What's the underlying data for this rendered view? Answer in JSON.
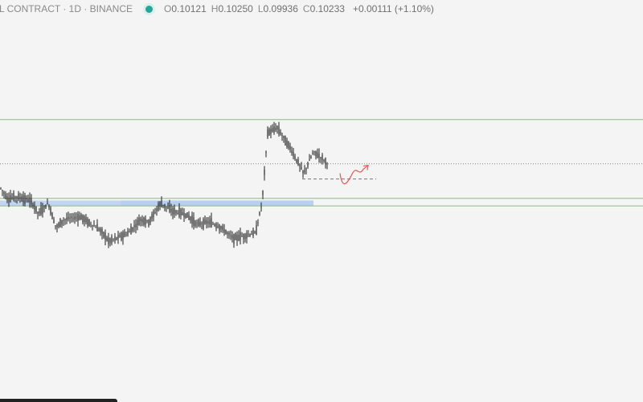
{
  "header": {
    "symbol": "L CONTRACT · 1D · BINANCE",
    "open_label": "O",
    "open": "0.10121",
    "high_label": "H",
    "high": "0.10250",
    "low_label": "L",
    "low": "0.09936",
    "close_label": "C",
    "close": "0.10233",
    "change": "+0.00111 (+1.10%)"
  },
  "colors": {
    "background": "#f4f4f4",
    "candle": "#1f1f1f",
    "level_line": "#8fb98a",
    "zone": "#b7cff0",
    "dotted_line": "#888888",
    "projection": "#e05a4f",
    "status_dot": "#26a69a"
  },
  "chart_data": {
    "type": "candlestick",
    "title": "",
    "candle_count": 200,
    "visible_price_range_approx": [
      0.0835,
      0.1185
    ],
    "horizontal_levels": [
      {
        "kind": "resistance",
        "style": "solid",
        "value": 0.1105
      },
      {
        "kind": "last-price",
        "style": "dotted",
        "value": 0.1023
      },
      {
        "kind": "support-top",
        "style": "solid",
        "value": 0.0959
      },
      {
        "kind": "support-bottom",
        "style": "solid",
        "value": 0.0945
      }
    ],
    "zone": {
      "value_low": 0.0945,
      "value_high": 0.0955,
      "color": "#b7cff0"
    },
    "projection_baseline": {
      "style": "dashed",
      "value": 0.0995
    },
    "projection_path": "dip then rise (red arrow)",
    "grid": false,
    "legend": "none"
  }
}
